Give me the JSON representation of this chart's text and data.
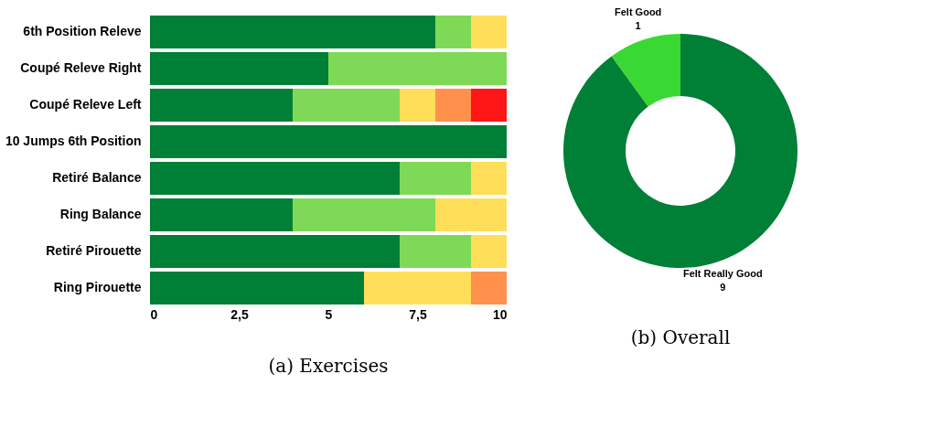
{
  "chart_data": [
    {
      "type": "bar",
      "orientation": "horizontal",
      "stacked": true,
      "title": "(a) Exercises",
      "categories": [
        "6th Position Releve",
        "Coupé Releve Right",
        "Coupé Releve Left",
        "10 Jumps 6th Position",
        "Retiré Balance",
        "Ring Balance",
        "Retiré Pirouette",
        "Ring Pirouette"
      ],
      "series": [
        {
          "color": "#007f36",
          "values": [
            8,
            5,
            4,
            10,
            7,
            4,
            7,
            6
          ]
        },
        {
          "color": "#7ed957",
          "values": [
            1,
            5,
            3,
            0,
            2,
            4,
            2,
            0
          ]
        },
        {
          "color": "#ffde59",
          "values": [
            1,
            0,
            1,
            0,
            1,
            2,
            1,
            3
          ]
        },
        {
          "color": "#ff914d",
          "values": [
            0,
            0,
            1,
            0,
            0,
            0,
            0,
            1
          ]
        },
        {
          "color": "#ff1616",
          "values": [
            0,
            0,
            1,
            0,
            0,
            0,
            0,
            0
          ]
        }
      ],
      "xlim": [
        0,
        10
      ],
      "xticks": [
        0,
        {
          "value": 2.5,
          "label": "2,5"
        },
        5,
        {
          "value": 7.5,
          "label": "7,5"
        },
        10
      ],
      "grid": false,
      "legend": false
    },
    {
      "type": "donut",
      "title": "(b) Overall",
      "categories": [
        "Felt Really Good",
        "Felt Good"
      ],
      "values": [
        9,
        1
      ],
      "colors": [
        "#007f36",
        "#39d833"
      ],
      "data_labels": true,
      "legend": false
    }
  ]
}
